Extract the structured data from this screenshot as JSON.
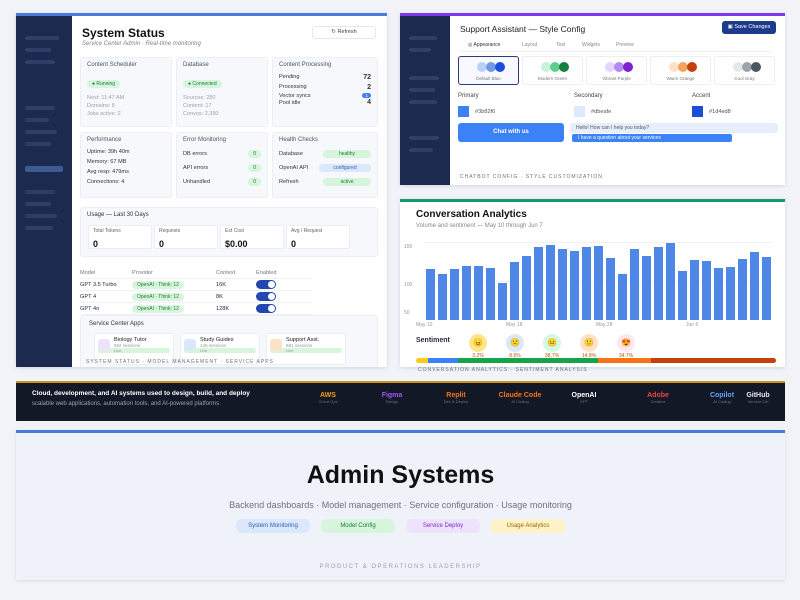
{
  "system_status": {
    "title": "System Status",
    "subtitle": "Service Center Admin · Real-time monitoring",
    "refresh_label": "Refresh",
    "scheduler": {
      "title": "Content Scheduler",
      "status": "Running",
      "lines": [
        "Next: 11:47 AM",
        "Domains: 8",
        "Jobs active: 2"
      ]
    },
    "database": {
      "title": "Database",
      "status": "Connected",
      "lines": [
        "Sources: 280",
        "Content: 17",
        "Convos: 2,390"
      ]
    },
    "processing": {
      "title": "Content Processing",
      "rows": [
        {
          "label": "Pending",
          "value": "72"
        },
        {
          "label": "Processing",
          "value": "2"
        },
        {
          "label": "Vector syncs",
          "value": "1"
        },
        {
          "label": "Pool idle",
          "value": "4"
        }
      ]
    },
    "performance": {
      "title": "Performance",
      "lines": [
        "Uptime: 39h 40m",
        "Memory: 67 MB",
        "Avg resp: 479ms",
        "Connections: 4"
      ]
    },
    "errors": {
      "title": "Error Monitoring",
      "rows": [
        {
          "label": "DB errors",
          "value": "0"
        },
        {
          "label": "API errors",
          "value": "0"
        },
        {
          "label": "Unhandled",
          "value": "0"
        }
      ]
    },
    "health": {
      "title": "Health Checks",
      "rows": [
        {
          "label": "Database",
          "value": "healthy"
        },
        {
          "label": "OpenAI API",
          "value": "configured"
        },
        {
          "label": "Refresh",
          "value": "active"
        }
      ]
    },
    "usage": {
      "title": "Usage — Last 30 Days",
      "stats": [
        {
          "label": "Total Tokens",
          "value": "0"
        },
        {
          "label": "Requests",
          "value": "0"
        },
        {
          "label": "Est Cost",
          "value": "$0.00"
        },
        {
          "label": "Avg / Request",
          "value": "0"
        }
      ]
    },
    "models_header": {
      "model": "Model",
      "provider": "Provider",
      "context": "Context",
      "enabled": "Enabled"
    },
    "models": [
      {
        "model": "GPT 3.5 Turbo",
        "provider": "OpenAI · Think: 12",
        "context": "16K"
      },
      {
        "model": "GPT 4",
        "provider": "OpenAI · Think: 12",
        "context": "8K"
      },
      {
        "model": "GPT 4o",
        "provider": "OpenAI · Think: 12",
        "context": "128K"
      }
    ],
    "apps_title": "Service Center Apps",
    "apps": [
      {
        "name": "Biology Tutor",
        "meta": "562 sessions",
        "status": "Live"
      },
      {
        "name": "Study Guides",
        "meta": "128 sessions",
        "status": "Live"
      },
      {
        "name": "Support Asst.",
        "meta": "881 sessions",
        "status": "Live"
      }
    ],
    "footer": "SYSTEM STATUS · MODEL MANAGEMENT · SERVICE APPS"
  },
  "style_config": {
    "title": "Support Assistant — Style Config",
    "save_label": "Save Changes",
    "tabs": [
      "Appearance",
      "Layout",
      "Text",
      "Widgets",
      "Preview"
    ],
    "themes": [
      {
        "name": "Default Blue",
        "c": [
          "#b9cff5",
          "#6f9ae8",
          "#1d4ed8"
        ]
      },
      {
        "name": "Modern Green",
        "c": [
          "#c9f0d9",
          "#5ccf8c",
          "#15803d"
        ]
      },
      {
        "name": "Vibrant Purple",
        "c": [
          "#e5d4fb",
          "#b38af3",
          "#7e22ce"
        ]
      },
      {
        "name": "Warm Orange",
        "c": [
          "#fde2c8",
          "#f5a25d",
          "#c2410c"
        ]
      },
      {
        "name": "Cool Gray",
        "c": [
          "#e5e7eb",
          "#9ca3af",
          "#4b5563"
        ]
      }
    ],
    "colors": [
      {
        "label": "Primary",
        "hex": "#3b82f6",
        "text": "#3b82f6"
      },
      {
        "label": "Secondary",
        "hex": "#dbeafe",
        "text": "#dbeafe"
      },
      {
        "label": "Accent",
        "hex": "#1d4ed8",
        "text": "#1d4ed8"
      }
    ],
    "chat_button": "Chat with us",
    "bot_msg": "Hello! How can I help you today?",
    "user_msg": "I have a question about your services",
    "footer": "CHATBOT CONFIG · STYLE CUSTOMIZATION"
  },
  "analytics": {
    "title": "Conversation Analytics",
    "subtitle": "Volume and sentiment — May 10 through Jun 7",
    "x_ticks": [
      "May 10",
      "May 18",
      "May 28",
      "Jun 6"
    ],
    "sentiment_label": "Sentiment",
    "sentiment": [
      {
        "pct": "3.2%",
        "color": "#fde68a"
      },
      {
        "pct": "8.6%",
        "color": "#dbe7fb"
      },
      {
        "pct": "38.7%",
        "color": "#d1fae5"
      },
      {
        "pct": "14.8%",
        "color": "#fde2c8"
      },
      {
        "pct": "34.7%",
        "color": "#fce7f3"
      }
    ],
    "footer": "CONVERSATION ANALYTICS · SENTIMENT ANALYSIS"
  },
  "chart_data": {
    "type": "bar",
    "title": "Conversation Analytics",
    "subtitle": "Volume and sentiment — May 10 through Jun 7",
    "xlabel": "",
    "ylabel": "",
    "y_ticks": [
      "150",
      "100",
      "50"
    ],
    "ylim": [
      0,
      160
    ],
    "x": [
      "May 10",
      "May 11",
      "May 12",
      "May 13",
      "May 14",
      "May 15",
      "May 16",
      "May 17",
      "May 18",
      "May 19",
      "May 20",
      "May 21",
      "May 22",
      "May 23",
      "May 24",
      "May 25",
      "May 26",
      "May 27",
      "May 28",
      "May 29",
      "May 30",
      "May 31",
      "Jun 1",
      "Jun 2",
      "Jun 3",
      "Jun 4",
      "Jun 5",
      "Jun 6",
      "Jun 7"
    ],
    "values": [
      104,
      95,
      104,
      110,
      110,
      107,
      75,
      118,
      132,
      150,
      154,
      145,
      141,
      150,
      151,
      128,
      94,
      145,
      132,
      150,
      157,
      101,
      124,
      122,
      106,
      108,
      126,
      139,
      130
    ]
  },
  "banner": {
    "heading": "Cloud, development, and AI systems used to design, build, and deploy",
    "subheading": "scalable web applications, automation tools, and AI-powered platforms.",
    "tools": [
      {
        "name": "AWS",
        "caption": "Cloud Ops",
        "color": "#f59e0b"
      },
      {
        "name": "Figma",
        "caption": "Design",
        "color": "#a855f7"
      },
      {
        "name": "Replit",
        "caption": "Dev & Deploy",
        "color": "#f97316"
      },
      {
        "name": "Claude Code",
        "caption": "AI Coding",
        "color": "#f97316"
      },
      {
        "name": "OpenAI",
        "caption": "GPT",
        "color": "#ffffff"
      },
      {
        "name": "Adobe",
        "caption": "Creative",
        "color": "#ef4444"
      },
      {
        "name": "Copilot",
        "caption": "AI Coding",
        "color": "#60a5fa"
      },
      {
        "name": "GitHub",
        "caption": "Version Ctrl",
        "color": "#e5e7eb"
      }
    ]
  },
  "hero": {
    "title": "Admin Systems",
    "subtitle": "Backend dashboards · Model management · Service configuration · Usage monitoring",
    "tags": [
      {
        "label": "System Monitoring",
        "bg": "#dbe7fb",
        "fg": "#2b5fb8"
      },
      {
        "label": "Model Config",
        "bg": "#d7f5dd",
        "fg": "#1d7a33"
      },
      {
        "label": "Service Deploy",
        "bg": "#ede4fb",
        "fg": "#7e22ce"
      },
      {
        "label": "Usage Analytics",
        "bg": "#fdf3c7",
        "fg": "#a16207"
      }
    ],
    "footer": "PRODUCT & OPERATIONS LEADERSHIP"
  }
}
